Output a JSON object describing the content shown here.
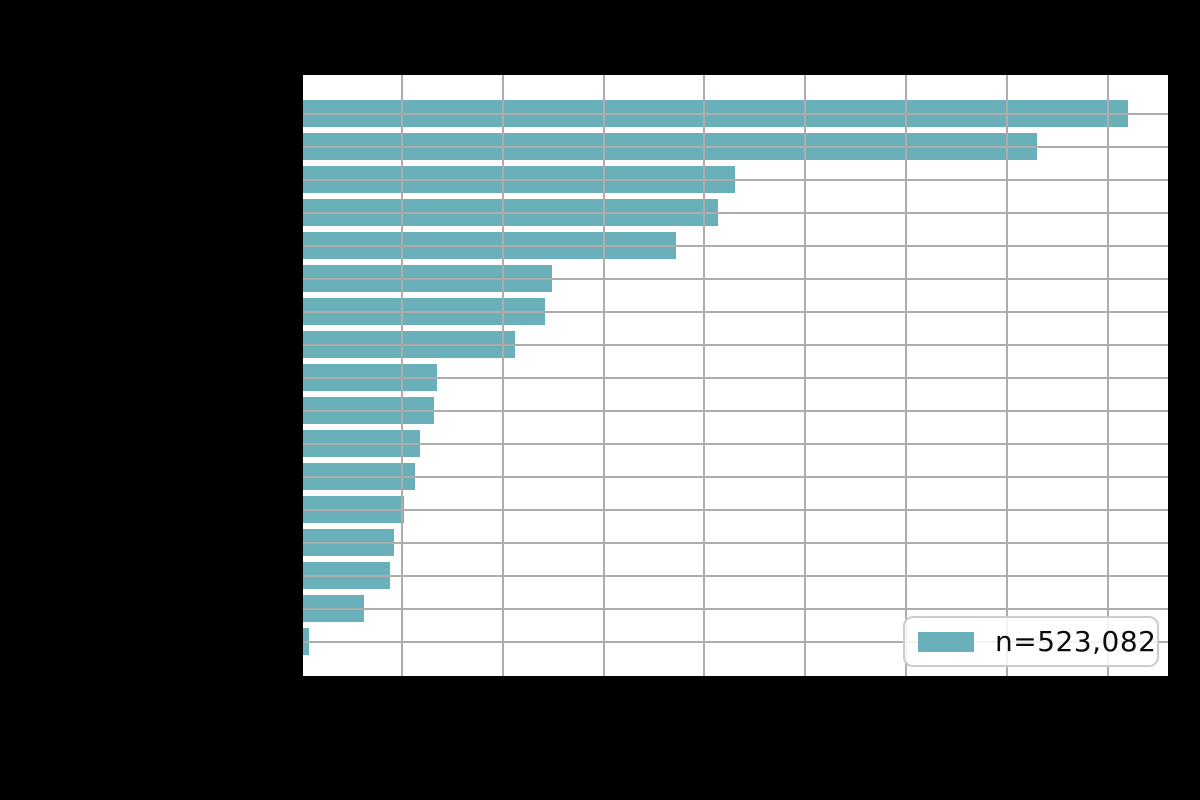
{
  "figure": {
    "background": "#000000",
    "plot_background": "#ffffff"
  },
  "legend": {
    "label": "n=523,082",
    "swatch_color": "#69b0bb",
    "border_color": "#cccccc",
    "position": "lower right"
  },
  "chart_data": {
    "type": "bar",
    "orientation": "horizontal",
    "title": "",
    "xlabel": "",
    "ylabel": "",
    "num_bars": 17,
    "values_in_tick_units": [
      8.2,
      7.3,
      4.3,
      4.13,
      3.72,
      2.49,
      2.42,
      2.12,
      1.35,
      1.32,
      1.18,
      1.13,
      1.02,
      0.92,
      0.88,
      0.62,
      0.08
    ],
    "x_axis": {
      "min": 0,
      "max": 8.615,
      "tick_interval": 1,
      "tick_labels_visible": false
    },
    "y_axis": {
      "num_categories": 17,
      "tick_labels_visible": false
    },
    "grid": {
      "show": true,
      "color": "#b0acaa",
      "drawn_above_bars": true
    },
    "bar_color": "#69b0bb",
    "legend": {
      "entries": [
        "n=523,082"
      ],
      "position": "lower right"
    }
  }
}
